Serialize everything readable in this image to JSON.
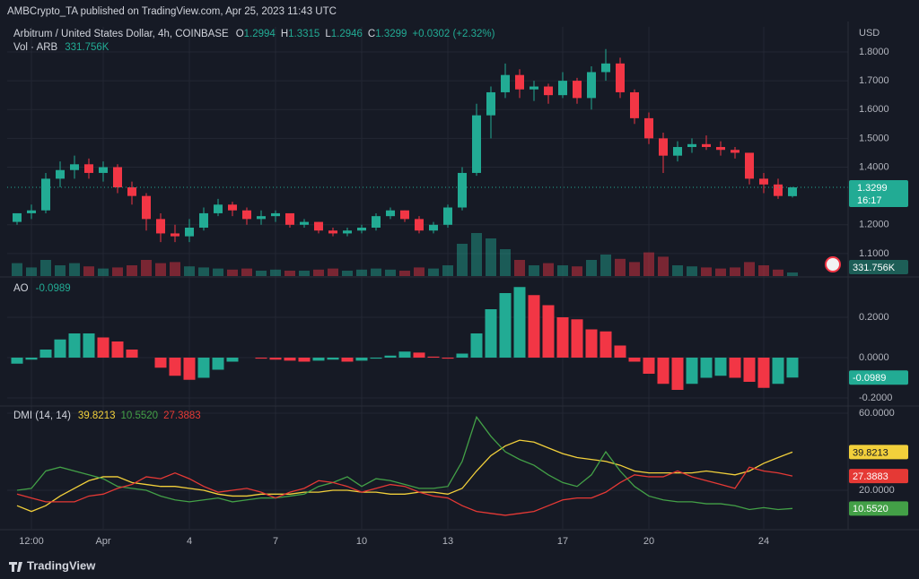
{
  "header": {
    "publisher": "AMBCrypto_TA published on TradingView.com, Apr 25, 2023 11:43 UTC"
  },
  "footer": {
    "brand": "TradingView"
  },
  "chart_data": [
    {
      "type": "candlestick",
      "title": "Arbitrum / United States Dollar, 4h, COINBASE",
      "ohlc_letters": [
        "O",
        "H",
        "L",
        "C"
      ],
      "change_label": "+0.0302 (+2.32%)",
      "countdown": "16:17",
      "axis_unit": "USD",
      "up_color": "#22ab94",
      "down_color": "#f23645",
      "open": [
        1.21,
        1.24,
        1.25,
        1.36,
        1.39,
        1.41,
        1.38,
        1.4,
        1.33,
        1.3,
        1.22,
        1.17,
        1.16,
        1.19,
        1.24,
        1.27,
        1.25,
        1.22,
        1.23,
        1.24,
        1.2,
        1.21,
        1.18,
        1.17,
        1.18,
        1.19,
        1.23,
        1.25,
        1.22,
        1.18,
        1.2,
        1.26,
        1.38,
        1.58,
        1.66,
        1.72,
        1.67,
        1.68,
        1.65,
        1.7,
        1.64,
        1.73,
        1.76,
        1.66,
        1.57,
        1.5,
        1.44,
        1.47,
        1.48,
        1.47,
        1.46,
        1.45,
        1.36,
        1.34,
        1.2994
      ],
      "high": [
        1.24,
        1.27,
        1.38,
        1.42,
        1.44,
        1.43,
        1.42,
        1.41,
        1.35,
        1.31,
        1.24,
        1.2,
        1.22,
        1.26,
        1.29,
        1.28,
        1.26,
        1.25,
        1.25,
        1.24,
        1.22,
        1.21,
        1.19,
        1.19,
        1.2,
        1.24,
        1.26,
        1.25,
        1.23,
        1.21,
        1.27,
        1.4,
        1.62,
        1.68,
        1.76,
        1.74,
        1.7,
        1.69,
        1.73,
        1.71,
        1.75,
        1.81,
        1.78,
        1.67,
        1.59,
        1.52,
        1.49,
        1.5,
        1.51,
        1.49,
        1.47,
        1.45,
        1.38,
        1.36,
        1.3315
      ],
      "low": [
        1.2,
        1.22,
        1.24,
        1.33,
        1.36,
        1.36,
        1.35,
        1.31,
        1.27,
        1.18,
        1.14,
        1.14,
        1.14,
        1.18,
        1.23,
        1.23,
        1.2,
        1.2,
        1.21,
        1.19,
        1.19,
        1.17,
        1.16,
        1.16,
        1.17,
        1.18,
        1.22,
        1.21,
        1.17,
        1.17,
        1.19,
        1.25,
        1.37,
        1.5,
        1.64,
        1.64,
        1.63,
        1.62,
        1.64,
        1.62,
        1.6,
        1.7,
        1.64,
        1.55,
        1.48,
        1.38,
        1.42,
        1.45,
        1.46,
        1.44,
        1.43,
        1.34,
        1.31,
        1.29,
        1.2946
      ],
      "close": [
        1.24,
        1.25,
        1.36,
        1.39,
        1.41,
        1.38,
        1.4,
        1.33,
        1.3,
        1.22,
        1.17,
        1.16,
        1.19,
        1.24,
        1.27,
        1.25,
        1.22,
        1.23,
        1.24,
        1.2,
        1.21,
        1.18,
        1.17,
        1.18,
        1.19,
        1.23,
        1.25,
        1.22,
        1.18,
        1.2,
        1.26,
        1.38,
        1.58,
        1.66,
        1.72,
        1.67,
        1.68,
        1.65,
        1.7,
        1.64,
        1.73,
        1.76,
        1.66,
        1.57,
        1.5,
        1.44,
        1.47,
        1.48,
        1.47,
        1.46,
        1.45,
        1.36,
        1.34,
        1.3,
        1.3299
      ],
      "ylim": [
        1.022,
        1.887
      ],
      "yticks": [
        {
          "value": 1.1,
          "label": "1.1000"
        },
        {
          "value": 1.2,
          "label": "1.2000"
        },
        {
          "value": 1.4,
          "label": "1.4000"
        },
        {
          "value": 1.5,
          "label": "1.5000"
        },
        {
          "value": 1.6,
          "label": "1.6000"
        },
        {
          "value": 1.7,
          "label": "1.7000"
        },
        {
          "value": 1.8,
          "label": "1.8000"
        }
      ],
      "xlim": [
        -0.6875,
        57.875
      ],
      "grid": true,
      "volume": {
        "title": "Vol · ARB",
        "last_label": "331.756K",
        "ylim": [
          0,
          5000000
        ],
        "values": [
          1200000,
          800000,
          1500000,
          1000000,
          1200000,
          900000,
          700000,
          800000,
          1000000,
          1500000,
          1200000,
          1300000,
          900000,
          800000,
          700000,
          600000,
          700000,
          500000,
          600000,
          500000,
          500000,
          600000,
          700000,
          500000,
          600000,
          700000,
          600000,
          500000,
          800000,
          700000,
          1000000,
          3000000,
          4000000,
          3500000,
          2500000,
          1500000,
          1000000,
          1200000,
          1000000,
          900000,
          1500000,
          2000000,
          1600000,
          1300000,
          2200000,
          1800000,
          1000000,
          900000,
          800000,
          700000,
          800000,
          1300000,
          1000000,
          600000,
          331756
        ]
      }
    },
    {
      "type": "bar",
      "title": "AO",
      "up_color": "#22ab94",
      "down_color": "#f23645",
      "values": [
        -0.03,
        -0.01,
        0.04,
        0.09,
        0.12,
        0.12,
        0.1,
        0.08,
        0.04,
        0.0,
        -0.05,
        -0.09,
        -0.11,
        -0.1,
        -0.06,
        -0.02,
        0.0,
        -0.005,
        -0.01,
        -0.015,
        -0.02,
        -0.015,
        -0.01,
        -0.02,
        -0.015,
        -0.005,
        0.01,
        0.03,
        0.025,
        0.005,
        -0.005,
        0.02,
        0.12,
        0.24,
        0.32,
        0.35,
        0.31,
        0.26,
        0.2,
        0.19,
        0.14,
        0.13,
        0.06,
        -0.02,
        -0.08,
        -0.13,
        -0.16,
        -0.13,
        -0.1,
        -0.09,
        -0.1,
        -0.12,
        -0.15,
        -0.13,
        -0.0989
      ],
      "ylim": [
        -0.2356,
        0.3956
      ],
      "yticks": [
        {
          "value": 0.2,
          "label": "0.2000"
        },
        {
          "value": 0,
          "label": "0.0000"
        },
        {
          "value": -0.2,
          "label": "-0.2000"
        }
      ],
      "xlim": [
        -0.6875,
        57.875
      ]
    },
    {
      "type": "line",
      "title": "DMI (14, 14)",
      "series": [
        {
          "color": "#f2d03b",
          "last_label": "39.8213",
          "values": [
            12,
            9,
            12,
            17,
            21,
            25,
            27,
            27,
            24,
            23,
            22,
            22,
            21,
            20,
            18,
            17,
            17,
            18,
            18,
            18,
            19,
            19,
            20,
            20,
            19,
            19,
            18,
            18,
            19,
            19,
            18,
            21,
            30,
            38,
            43,
            46,
            45,
            42,
            39,
            37,
            36,
            35,
            33,
            30,
            29,
            29,
            29,
            29,
            30,
            29,
            28,
            30,
            34,
            37,
            39.8213
          ]
        },
        {
          "color": "#43a047",
          "last_label": "10.5520",
          "values": [
            20,
            21,
            30,
            32,
            30,
            28,
            26,
            22,
            21,
            20,
            17,
            15,
            14,
            15,
            16,
            14,
            15,
            16,
            16,
            17,
            18,
            22,
            24,
            27,
            22,
            26,
            25,
            23,
            21,
            21,
            22,
            35,
            58,
            48,
            40,
            36,
            33,
            28,
            24,
            22,
            28,
            40,
            30,
            22,
            17,
            15,
            14,
            14,
            13,
            13,
            12,
            10,
            11,
            10,
            10.552
          ]
        },
        {
          "color": "#e53935",
          "last_label": "27.3883",
          "values": [
            18,
            16,
            14,
            14,
            14,
            17,
            18,
            21,
            23,
            27,
            26,
            29,
            26,
            22,
            19,
            20,
            21,
            19,
            16,
            19,
            21,
            25,
            24,
            22,
            19,
            21,
            23,
            22,
            19,
            17,
            16,
            12,
            9,
            8,
            7,
            8,
            9,
            12,
            15,
            16,
            16,
            19,
            24,
            28,
            27,
            27,
            30,
            27,
            25,
            23,
            21,
            32,
            30,
            29,
            27.3883
          ]
        }
      ],
      "ylim": [
        0,
        62.8
      ],
      "yticks": [
        {
          "value": 60,
          "label": "60.0000"
        },
        {
          "value": 20,
          "label": "20.0000"
        }
      ],
      "xlim": [
        -0.6875,
        57.875
      ],
      "xticks": [
        {
          "value": 1,
          "label": "12:00"
        },
        {
          "value": 6,
          "label": "Apr"
        },
        {
          "value": 12,
          "label": "4"
        },
        {
          "value": 18,
          "label": "7"
        },
        {
          "value": 24,
          "label": "10"
        },
        {
          "value": 30,
          "label": "13"
        },
        {
          "value": 38,
          "label": "17"
        },
        {
          "value": 44,
          "label": "20"
        },
        {
          "value": 52,
          "label": "24"
        }
      ]
    }
  ]
}
